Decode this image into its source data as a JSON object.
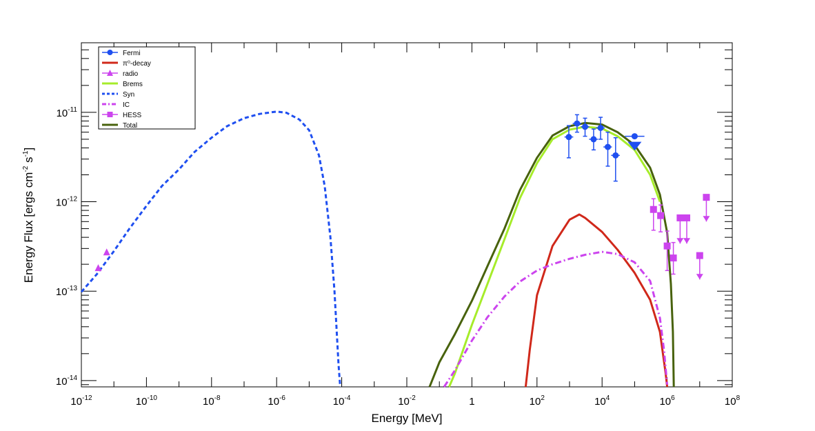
{
  "chart_data": {
    "type": "line",
    "title": "",
    "xlabel": "Energy [MeV]",
    "ylabel": {
      "main": "Energy Flux [ergs cm",
      "exp1": "-2",
      "mid": " s",
      "exp2": "-1",
      "end": "]"
    },
    "x_log": true,
    "y_log": true,
    "xlim": [
      1e-12,
      100000000.0
    ],
    "ylim": [
      8.5e-15,
      6e-11
    ],
    "x_ticks": [
      {
        "value": 1e-12,
        "base": "10",
        "exp": "-12"
      },
      {
        "value": 1e-10,
        "base": "10",
        "exp": "-10"
      },
      {
        "value": 1e-08,
        "base": "10",
        "exp": "-8"
      },
      {
        "value": 1e-06,
        "base": "10",
        "exp": "-6"
      },
      {
        "value": 0.0001,
        "base": "10",
        "exp": "-4"
      },
      {
        "value": 0.01,
        "base": "10",
        "exp": "-2"
      },
      {
        "value": 1,
        "base": "1",
        "exp": ""
      },
      {
        "value": 100.0,
        "base": "10",
        "exp": "2"
      },
      {
        "value": 10000.0,
        "base": "10",
        "exp": "4"
      },
      {
        "value": 1000000.0,
        "base": "10",
        "exp": "6"
      },
      {
        "value": 100000000.0,
        "base": "10",
        "exp": "8"
      }
    ],
    "y_ticks": [
      {
        "value": 1e-14,
        "base": "10",
        "exp": "-14"
      },
      {
        "value": 1e-13,
        "base": "10",
        "exp": "-13"
      },
      {
        "value": 1e-12,
        "base": "10",
        "exp": "-12"
      },
      {
        "value": 1e-11,
        "base": "10",
        "exp": "-11"
      }
    ],
    "legend": {
      "placement": "top-left",
      "entries": [
        {
          "label": "Fermi",
          "color": "#1f4ff0",
          "style": "marker-circle"
        },
        {
          "label": "π⁰-decay",
          "color": "#d0281a",
          "style": "solid"
        },
        {
          "label": "radio",
          "color": "#cc44ee",
          "style": "marker-triangle"
        },
        {
          "label": "Brems",
          "color": "#a6ec2a",
          "style": "solid"
        },
        {
          "label": "Syn",
          "color": "#1f4ff0",
          "style": "dashed"
        },
        {
          "label": "IC",
          "color": "#cc44ee",
          "style": "dashdot"
        },
        {
          "label": "HESS",
          "color": "#cc44ee",
          "style": "marker-square"
        },
        {
          "label": "Total",
          "color": "#48620d",
          "style": "solid"
        }
      ]
    },
    "series": [
      {
        "name": "Syn",
        "color": "#1f4ff0",
        "style": "dashed",
        "points": [
          [
            1e-12,
            9.8e-14
          ],
          [
            3e-12,
            1.55e-13
          ],
          [
            1e-11,
            2.8e-13
          ],
          [
            3e-11,
            5e-13
          ],
          [
            1e-10,
            9e-13
          ],
          [
            3e-10,
            1.5e-12
          ],
          [
            1e-09,
            2.3e-12
          ],
          [
            3e-09,
            3.6e-12
          ],
          [
            1e-08,
            5.2e-12
          ],
          [
            3e-08,
            7e-12
          ],
          [
            1e-07,
            8.6e-12
          ],
          [
            3e-07,
            9.6e-12
          ],
          [
            1e-06,
            1.02e-11
          ],
          [
            2e-06,
            9.9e-12
          ],
          [
            5e-06,
            8.3e-12
          ],
          [
            1e-05,
            6.3e-12
          ],
          [
            2e-05,
            3.3e-12
          ],
          [
            3e-05,
            1.5e-12
          ],
          [
            4.5e-05,
            4e-13
          ],
          [
            6e-05,
            1e-13
          ],
          [
            8e-05,
            1.5e-14
          ],
          [
            9e-05,
            8.5e-15
          ]
        ]
      },
      {
        "name": "Total",
        "color": "#48620d",
        "style": "solid",
        "points": [
          [
            0.05,
            8.5e-15
          ],
          [
            0.1,
            1.6e-14
          ],
          [
            0.3,
            3.3e-14
          ],
          [
            1,
            7.8e-14
          ],
          [
            3,
            1.9e-13
          ],
          [
            10,
            5e-13
          ],
          [
            30,
            1.35e-12
          ],
          [
            100,
            3.1e-12
          ],
          [
            300,
            5.5e-12
          ],
          [
            1000,
            7e-12
          ],
          [
            3000,
            7.6e-12
          ],
          [
            10000.0,
            7.3e-12
          ],
          [
            30000.0,
            6e-12
          ],
          [
            100000.0,
            4.3e-12
          ],
          [
            300000.0,
            2.4e-12
          ],
          [
            600000.0,
            1.2e-12
          ],
          [
            1000000.0,
            4.5e-13
          ],
          [
            1300000.0,
            1.2e-13
          ],
          [
            1500000.0,
            3.5e-14
          ],
          [
            1600000.0,
            8.5e-15
          ]
        ]
      },
      {
        "name": "Brems",
        "color": "#a6ec2a",
        "style": "solid",
        "points": [
          [
            0.2,
            8.5e-15
          ],
          [
            0.3,
            1.2e-14
          ],
          [
            1,
            4.2e-14
          ],
          [
            3,
            1.2e-13
          ],
          [
            10,
            3.8e-13
          ],
          [
            30,
            1.1e-12
          ],
          [
            100,
            2.7e-12
          ],
          [
            300,
            5e-12
          ],
          [
            1000,
            6.4e-12
          ],
          [
            3000,
            6.9e-12
          ],
          [
            10000.0,
            6.6e-12
          ],
          [
            30000.0,
            5.4e-12
          ],
          [
            100000.0,
            3.8e-12
          ],
          [
            300000.0,
            2e-12
          ],
          [
            600000.0,
            1e-12
          ]
        ]
      },
      {
        "name": "π⁰-decay",
        "color": "#d0281a",
        "style": "solid",
        "points": [
          [
            45,
            8.5e-15
          ],
          [
            60,
            2.2e-14
          ],
          [
            100,
            9e-14
          ],
          [
            300,
            3.2e-13
          ],
          [
            1000,
            6.3e-13
          ],
          [
            2000,
            7.2e-13
          ],
          [
            3000,
            6.6e-13
          ],
          [
            10000.0,
            4.6e-13
          ],
          [
            30000.0,
            2.9e-13
          ],
          [
            100000.0,
            1.6e-13
          ],
          [
            300000.0,
            8e-14
          ],
          [
            600000.0,
            3.5e-14
          ],
          [
            900000.0,
            1.2e-14
          ],
          [
            1000000.0,
            8.5e-15
          ]
        ]
      },
      {
        "name": "IC",
        "color": "#cc44ee",
        "style": "dashdot",
        "points": [
          [
            0.14,
            8.5e-15
          ],
          [
            0.3,
            1.3e-14
          ],
          [
            1,
            2.8e-14
          ],
          [
            3,
            5.1e-14
          ],
          [
            10,
            8.7e-14
          ],
          [
            30,
            1.28e-13
          ],
          [
            100,
            1.7e-13
          ],
          [
            300,
            2e-13
          ],
          [
            1000,
            2.3e-13
          ],
          [
            3000,
            2.55e-13
          ],
          [
            10000.0,
            2.75e-13
          ],
          [
            30000.0,
            2.6e-13
          ],
          [
            100000.0,
            2.1e-13
          ],
          [
            300000.0,
            1.3e-13
          ],
          [
            600000.0,
            5e-14
          ],
          [
            800000.0,
            2.2e-14
          ],
          [
            1000000.0,
            9e-15
          ]
        ]
      }
    ],
    "fermi_points": [
      {
        "x": 950,
        "y": 5.3e-12,
        "ylo": 3.1e-12,
        "yhi": 7.1e-12,
        "xlo": 700,
        "xhi": 1300
      },
      {
        "x": 1700,
        "y": 7.5e-12,
        "ylo": 6e-12,
        "yhi": 9.4e-12,
        "xlo": 1250,
        "xhi": 2300
      },
      {
        "x": 3000,
        "y": 6.9e-12,
        "ylo": 5.4e-12,
        "yhi": 8.6e-12,
        "xlo": 2200,
        "xhi": 4100
      },
      {
        "x": 5500,
        "y": 5e-12,
        "ylo": 3.8e-12,
        "yhi": 6.5e-12,
        "xlo": 4000,
        "xhi": 7500
      },
      {
        "x": 9000,
        "y": 6.7e-12,
        "ylo": 5e-12,
        "yhi": 8.8e-12,
        "xlo": 6500,
        "xhi": 12000.0
      },
      {
        "x": 15000.0,
        "y": 4.1e-12,
        "ylo": 2.5e-12,
        "yhi": 6e-12,
        "xlo": 11000.0,
        "xhi": 20000.0
      },
      {
        "x": 26000.0,
        "y": 3.3e-12,
        "ylo": 1.7e-12,
        "yhi": 5.2e-12,
        "xlo": 19000.0,
        "xhi": 35000.0
      }
    ],
    "fermi_upper_limit": {
      "x": 100000.0,
      "y": 5.4e-12,
      "arrow_to": 4.3e-12,
      "xlo": 50000.0,
      "xhi": 200000.0
    },
    "radio_points": [
      {
        "x": 3.3e-12,
        "y": 1.8e-13
      },
      {
        "x": 6e-12,
        "y": 2.7e-13
      }
    ],
    "hess_points": [
      {
        "x": 380000.0,
        "y": 8.2e-13,
        "ylo": 4.8e-13,
        "yhi": 1.08e-12,
        "ul": false
      },
      {
        "x": 630000.0,
        "y": 7e-13,
        "ylo": 4.6e-13,
        "yhi": 9.2e-13,
        "ul": false
      },
      {
        "x": 1000000.0,
        "y": 3.2e-13,
        "ylo": 1.7e-13,
        "yhi": 4.7e-13,
        "ul": false
      },
      {
        "x": 1550000.0,
        "y": 2.35e-13,
        "ylo": 1.55e-13,
        "yhi": 3.5e-13,
        "ul": false
      },
      {
        "x": 2500000.0,
        "y": 6.6e-13,
        "ul": true,
        "arrow_to": 3.4e-13
      },
      {
        "x": 4000000.0,
        "y": 6.6e-13,
        "ul": true,
        "arrow_to": 3.4e-13
      },
      {
        "x": 10000000.0,
        "y": 2.5e-13,
        "ul": true,
        "arrow_to": 1.35e-13
      },
      {
        "x": 16000000.0,
        "y": 1.12e-12,
        "ul": true,
        "arrow_to": 6e-13
      }
    ]
  }
}
